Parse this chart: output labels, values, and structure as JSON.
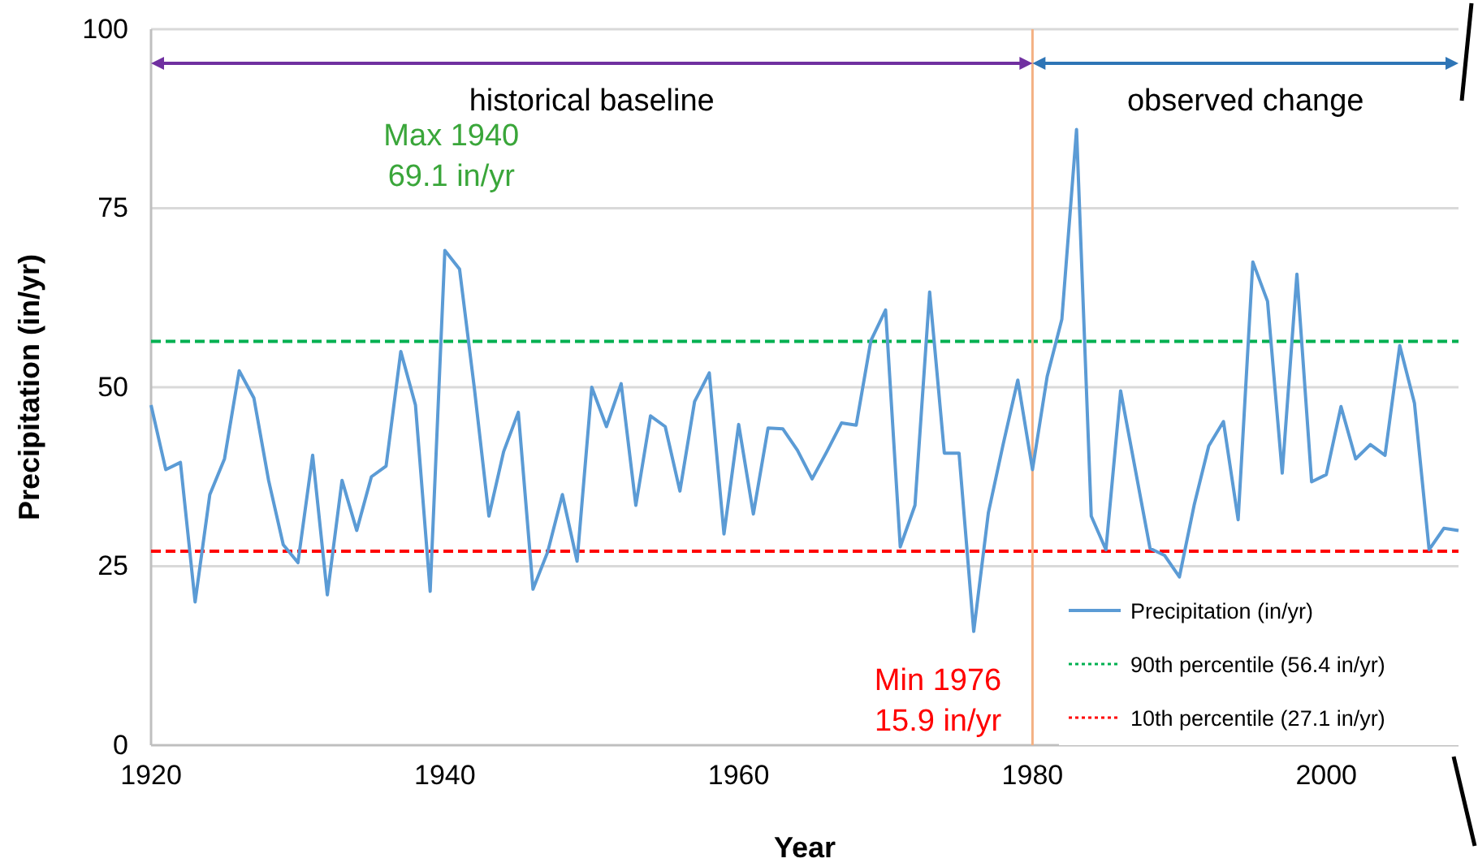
{
  "chart_data": {
    "type": "line",
    "xlabel": "Year",
    "ylabel": "Precipitation (in/yr)",
    "x": [
      1920,
      1921,
      1922,
      1923,
      1924,
      1925,
      1926,
      1927,
      1928,
      1929,
      1930,
      1931,
      1932,
      1933,
      1934,
      1935,
      1936,
      1937,
      1938,
      1939,
      1940,
      1941,
      1942,
      1943,
      1944,
      1945,
      1946,
      1947,
      1948,
      1949,
      1950,
      1951,
      1952,
      1953,
      1954,
      1955,
      1956,
      1957,
      1958,
      1959,
      1960,
      1961,
      1962,
      1963,
      1964,
      1965,
      1966,
      1967,
      1968,
      1969,
      1970,
      1971,
      1972,
      1973,
      1974,
      1975,
      1976,
      1977,
      1978,
      1979,
      1980,
      1981,
      1982,
      1983,
      1984,
      1985,
      1986,
      1987,
      1988,
      1989,
      1990,
      1991,
      1992,
      1993,
      1994,
      1995,
      1996,
      1997,
      1998,
      1999,
      2000,
      2001,
      2002,
      2003,
      2004,
      2005,
      2006,
      2007,
      2008,
      2009
    ],
    "series": [
      {
        "name": "Precipitation (in/yr)",
        "color": "#5b9bd5",
        "values": [
          47.5,
          38.5,
          39.5,
          20,
          35,
          40,
          52.3,
          48.5,
          37,
          28,
          25.5,
          40.5,
          21,
          37,
          30,
          37.5,
          39,
          55,
          47.5,
          21.5,
          69.1,
          66.5,
          50,
          32,
          41,
          46.5,
          21.8,
          27,
          35,
          25.7,
          50,
          44.5,
          50.5,
          33.5,
          46,
          44.5,
          35.5,
          48,
          52,
          29.5,
          44.8,
          32.3,
          44.3,
          44.2,
          41.2,
          37.2,
          41,
          45,
          44.7,
          56.5,
          60.8,
          27.7,
          33.5,
          63.3,
          40.8,
          40.8,
          15.9,
          32.5,
          42,
          51,
          38.5,
          51.5,
          59.5,
          86,
          32,
          27.3,
          49.5,
          38.5,
          27.5,
          26.5,
          23.5,
          33.5,
          41.8,
          45.2,
          31.5,
          67.5,
          62,
          38,
          65.8,
          36.8,
          37.8,
          47.3,
          40,
          42,
          40.5,
          55.8,
          47.8,
          27.3,
          30.3,
          30
        ]
      }
    ],
    "xlim": [
      1920,
      2009
    ],
    "xticks": [
      1920,
      1940,
      1960,
      1980,
      2000
    ],
    "ylim": [
      0,
      100
    ],
    "yticks": [
      0,
      25,
      50,
      75,
      100
    ],
    "grid": "y",
    "legend": "bottom right",
    "marker": "none",
    "line_style": "solid",
    "ref_lines": [
      {
        "axis": "y",
        "value": 56.4,
        "label": "90th percentile (56.4 in/yr)",
        "color": "#00b050",
        "line_style": "dashed"
      },
      {
        "axis": "y",
        "value": 27.1,
        "label": "10th percentile (27.1 in/yr)",
        "color": "#ff0000",
        "line_style": "dashed"
      },
      {
        "axis": "x",
        "value": 1980,
        "color": "#f4b183",
        "line_style": "solid"
      }
    ],
    "annotations": [
      {
        "text": "Max 1940\n69.1 in/yr",
        "x": 1940,
        "y": 69.1
      },
      {
        "text": "Min 1976\n15.9 in/yr",
        "x": 1976,
        "y": 15.9
      },
      "historical baseline",
      "observed change"
    ]
  }
}
